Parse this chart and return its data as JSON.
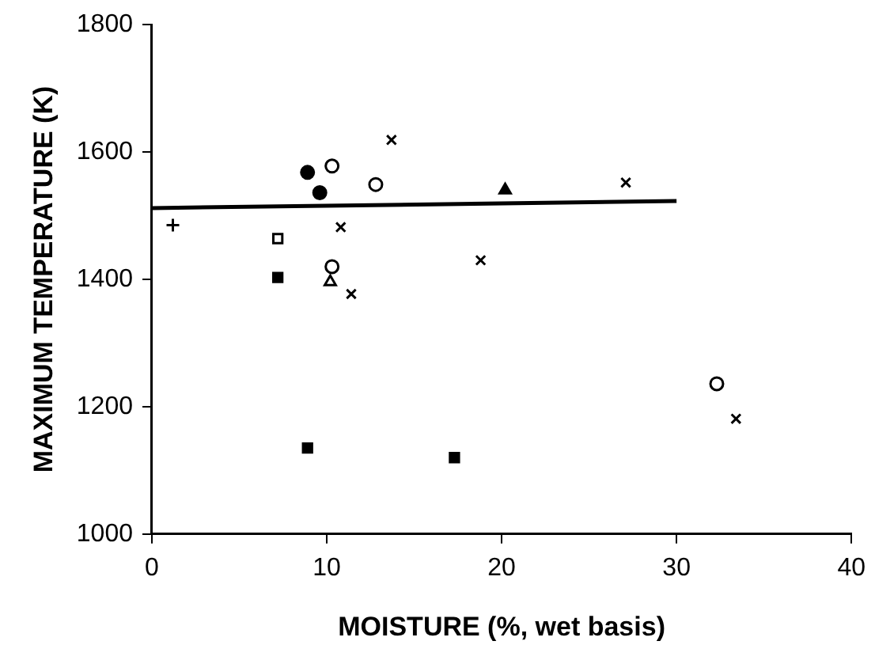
{
  "chart_data": {
    "type": "scatter",
    "xlabel": "MOISTURE (%, wet basis)",
    "ylabel": "MAXIMUM TEMPERATURE (K)",
    "xlim": [
      0,
      40
    ],
    "xticks": [
      0,
      10,
      20,
      30,
      40
    ],
    "ylim": [
      1000,
      1800
    ],
    "yticks": [
      1000,
      1200,
      1400,
      1600,
      1800
    ],
    "grid": false,
    "legend": false,
    "series": [
      {
        "color": "#000000",
        "marker": "cross",
        "x": [
          1.2
        ],
        "values": [
          1485
        ]
      },
      {
        "color": "#000000",
        "marker": "square-open",
        "x": [
          7.2
        ],
        "values": [
          1464
        ]
      },
      {
        "color": "#000000",
        "marker": "square",
        "x": [
          7.2
        ],
        "values": [
          1403
        ]
      },
      {
        "color": "#000000",
        "marker": "circle",
        "x": [
          8.9,
          9.6
        ],
        "values": [
          1568,
          1536
        ]
      },
      {
        "color": "#000000",
        "marker": "circle-open",
        "x": [
          10.3,
          12.8,
          10.3,
          32.3
        ],
        "values": [
          1578,
          1549,
          1420,
          1236
        ]
      },
      {
        "color": "#000000",
        "marker": "triangle-open",
        "x": [
          10.2
        ],
        "values": [
          1396
        ]
      },
      {
        "color": "#000000",
        "marker": "triangle",
        "x": [
          20.2
        ],
        "values": [
          1540
        ]
      },
      {
        "color": "#000000",
        "marker": "x",
        "x": [
          10.8,
          11.4,
          13.7,
          18.8,
          27.1,
          33.4
        ],
        "values": [
          1482,
          1377,
          1619,
          1430,
          1552,
          1181
        ]
      },
      {
        "color": "#000000",
        "marker": "square",
        "x": [
          8.9,
          17.3
        ],
        "values": [
          1135,
          1120
        ]
      },
      {
        "type": "line",
        "color": "#000000",
        "marker": "none",
        "line_style": "solid",
        "x": [
          0,
          30
        ],
        "values": [
          1512,
          1523
        ]
      }
    ]
  }
}
